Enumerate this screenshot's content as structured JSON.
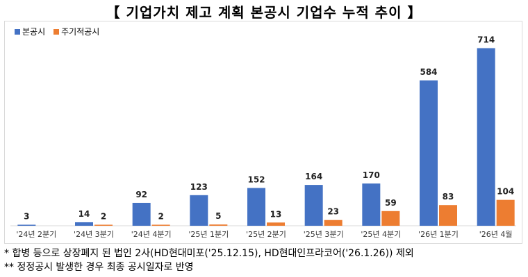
{
  "title": "【 기업가치 제고 계획 본공시 기업수 누적 추이 】",
  "colors": {
    "main": "#4472C4",
    "periodic": "#ED7D31"
  },
  "chart_data": {
    "type": "bar",
    "title": "【 기업가치 제고 계획 본공시 기업수 누적 추이 】",
    "categories": [
      "'24년 2분기",
      "'24년 3분기",
      "'24년 4분기",
      "'25년 1분기",
      "'25년 2분기",
      "'25년 3분기",
      "'25년 4분기",
      "'26년 1분기",
      "'26년 4월"
    ],
    "series": [
      {
        "name": "본공시",
        "values": [
          3,
          14,
          92,
          123,
          152,
          164,
          170,
          584,
          714
        ]
      },
      {
        "name": "주기적공시",
        "values": [
          null,
          2,
          2,
          5,
          13,
          23,
          59,
          83,
          104
        ]
      }
    ],
    "ylim": [
      0,
      760
    ],
    "grid": false,
    "legend": "top-left"
  },
  "footnotes": [
    "*  합병 등으로 상장폐지 된 법인 2사(HD현대미포('25.12.15), HD현대인프라코어('26.1.26)) 제외",
    "** 정정공시 발생한 경우 최종 공시일자로 반영"
  ]
}
